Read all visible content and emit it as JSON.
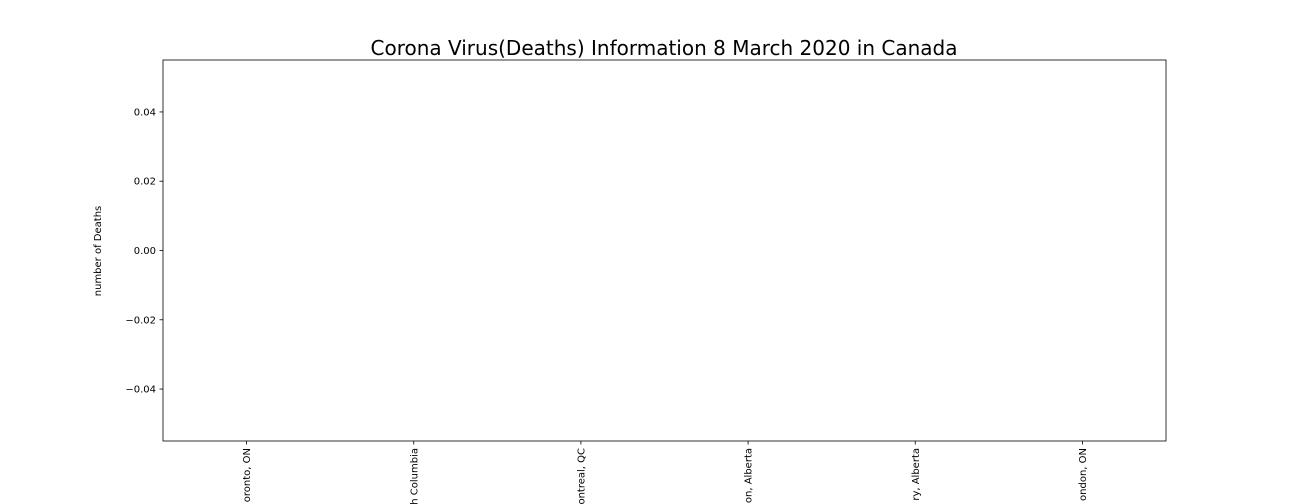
{
  "chart_data": {
    "type": "bar",
    "title": "Corona Virus(Deaths) Information 8 March 2020 in Canada",
    "y_label": "number of Deaths",
    "categories": [
      "oronto, ON",
      "h Columbia",
      "ontreal, QC",
      "on, Alberta",
      "ry, Alberta",
      "ondon, ON"
    ],
    "values": [
      0,
      0,
      0,
      0,
      0,
      0
    ],
    "color": "#1f77b4",
    "ylim": [
      -0.055,
      0.055
    ],
    "yticks": [
      {
        "value": -0.04,
        "label": "−0.04"
      },
      {
        "value": -0.02,
        "label": "−0.02"
      },
      {
        "value": 0,
        "label": "0.00"
      },
      0.02,
      0.04
    ],
    "grid": false
  }
}
